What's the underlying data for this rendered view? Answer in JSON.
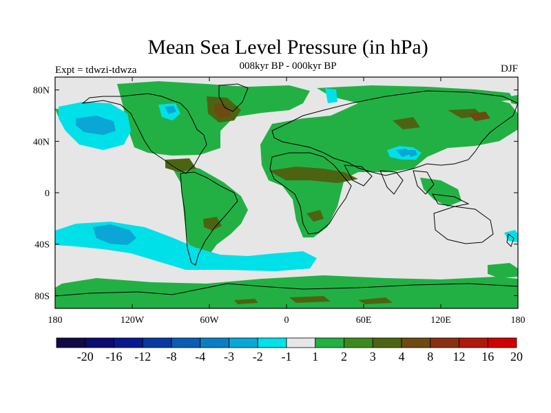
{
  "title": "Mean Sea Level Pressure (in hPa)",
  "subtitle": "008kyr BP - 000kyr BP",
  "left_label": "Expt = tdwzi-tdwza",
  "right_label": "DJF",
  "lat_ticks": [
    {
      "value": 80,
      "label": "80N"
    },
    {
      "value": 40,
      "label": "40N"
    },
    {
      "value": 0,
      "label": "0"
    },
    {
      "value": -40,
      "label": "40S"
    },
    {
      "value": -80,
      "label": "80S"
    }
  ],
  "lon_ticks": [
    {
      "value": -180,
      "label": "180"
    },
    {
      "value": -120,
      "label": "120W"
    },
    {
      "value": -60,
      "label": "60W"
    },
    {
      "value": 0,
      "label": "0"
    },
    {
      "value": 60,
      "label": "60E"
    },
    {
      "value": 120,
      "label": "120E"
    },
    {
      "value": 180,
      "label": "180"
    }
  ],
  "colorbar": {
    "labels": [
      "-20",
      "-16",
      "-12",
      "-8",
      "-4",
      "-3",
      "-2",
      "-1",
      "1",
      "2",
      "3",
      "4",
      "8",
      "12",
      "16",
      "20"
    ],
    "colors": [
      "#120a46",
      "#0c0c6e",
      "#0a1890",
      "#0838a0",
      "#0a5cb4",
      "#0a7ec4",
      "#0aa6d6",
      "#00e0e8",
      "#e6e6e6",
      "#22b044",
      "#3c8a1e",
      "#4c6412",
      "#6c4a12",
      "#8a3010",
      "#b0180a",
      "#d00000"
    ]
  },
  "palette": {
    "background": "#e6e6e6",
    "green": "#22b044",
    "olive": "#4c6412",
    "brown": "#6c4a12",
    "cyan": "#00e0e8",
    "blue": "#0aa6d6",
    "coast": "#000000"
  }
}
